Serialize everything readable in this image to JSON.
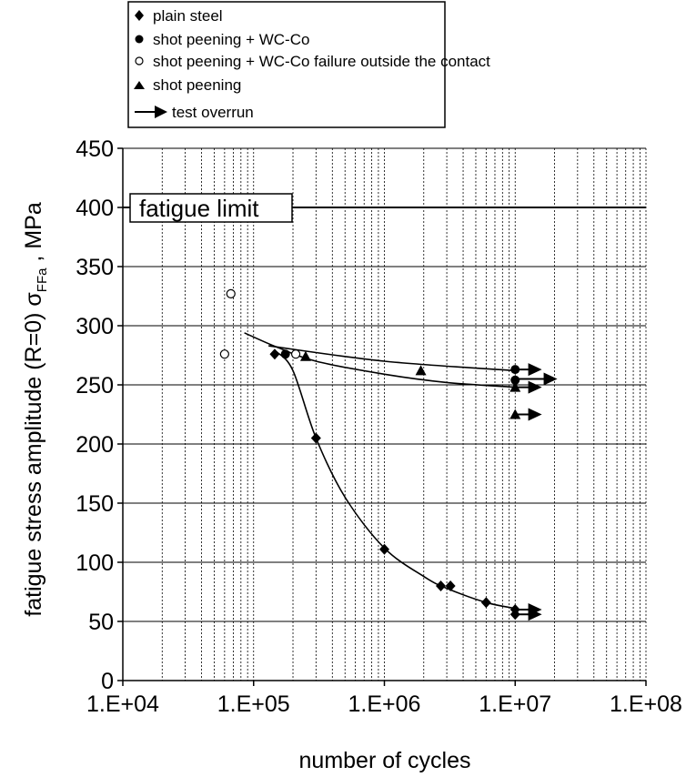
{
  "chart_data": {
    "type": "scatter",
    "x_scale": "log",
    "xlabel": "number of cycles",
    "ylabel_main": "fatigue stress amplitude (R=0) σ",
    "ylabel_sub": "FFa",
    "ylabel_unit": " , MPa",
    "xlim": [
      10000,
      100000000
    ],
    "ylim": [
      0,
      450
    ],
    "x_ticks": [
      10000,
      100000,
      1000000,
      10000000,
      100000000
    ],
    "x_tick_labels": [
      "1.E+04",
      "1.E+05",
      "1.E+06",
      "1.E+07",
      "1.E+08"
    ],
    "y_ticks": [
      0,
      50,
      100,
      150,
      200,
      250,
      300,
      350,
      400,
      450
    ],
    "y_tick_labels": [
      "0",
      "50",
      "100",
      "150",
      "200",
      "250",
      "300",
      "350",
      "400",
      "450"
    ],
    "grid": "minor vertical dashed, major horizontal solid",
    "legend_position": "top",
    "series": [
      {
        "name": "plain steel",
        "marker": "diamond",
        "points": [
          [
            145000,
            276
          ],
          [
            300000,
            205
          ],
          [
            1000000,
            111
          ],
          [
            2700000,
            80
          ],
          [
            3200000,
            80
          ],
          [
            6000000,
            66
          ],
          [
            10000000,
            60
          ],
          [
            10000000,
            56
          ]
        ]
      },
      {
        "name": "shot peening + WC-Co",
        "marker": "circle-filled",
        "points": [
          [
            175000,
            276
          ],
          [
            10000000,
            263
          ],
          [
            10000000,
            254
          ]
        ]
      },
      {
        "name": "shot peening + WC-Co failure outside the contact",
        "marker": "circle-open",
        "points": [
          [
            60000,
            276
          ],
          [
            67000,
            327
          ],
          [
            210000,
            276
          ]
        ]
      },
      {
        "name": "shot peening",
        "marker": "triangle",
        "points": [
          [
            250000,
            274
          ],
          [
            1900000,
            262
          ],
          [
            10000000,
            248
          ],
          [
            10000000,
            225
          ]
        ]
      }
    ],
    "test_overrun_legend": "test overrun",
    "overrun_arrows": [
      {
        "x_start": 10000000,
        "x_end": 16000000,
        "y": 263
      },
      {
        "x_start": 10000000,
        "x_end": 21000000,
        "y": 255
      },
      {
        "x_start": 10000000,
        "x_end": 16000000,
        "y": 248
      },
      {
        "x_start": 10000000,
        "x_end": 16000000,
        "y": 225
      },
      {
        "x_start": 10000000,
        "x_end": 16000000,
        "y": 60
      },
      {
        "x_start": 10000000,
        "x_end": 16000000,
        "y": 56
      }
    ],
    "trend_lines": [
      {
        "points": [
          [
            150000,
            278
          ],
          [
            200000,
            262
          ],
          [
            300000,
            205
          ],
          [
            500000,
            155
          ],
          [
            1000000,
            112
          ],
          [
            2000000,
            88
          ],
          [
            3000000,
            78
          ],
          [
            6000000,
            66
          ],
          [
            10000000,
            61
          ]
        ]
      },
      {
        "points": [
          [
            85000,
            294
          ],
          [
            150000,
            282
          ],
          [
            300000,
            270
          ],
          [
            1000000,
            259
          ],
          [
            3000000,
            252
          ],
          [
            10000000,
            248
          ]
        ]
      },
      {
        "points": [
          [
            130000,
            283
          ],
          [
            1000000,
            270
          ],
          [
            10000000,
            262
          ]
        ]
      }
    ],
    "reference_line": {
      "label": "fatigue limit",
      "y": 400
    }
  }
}
